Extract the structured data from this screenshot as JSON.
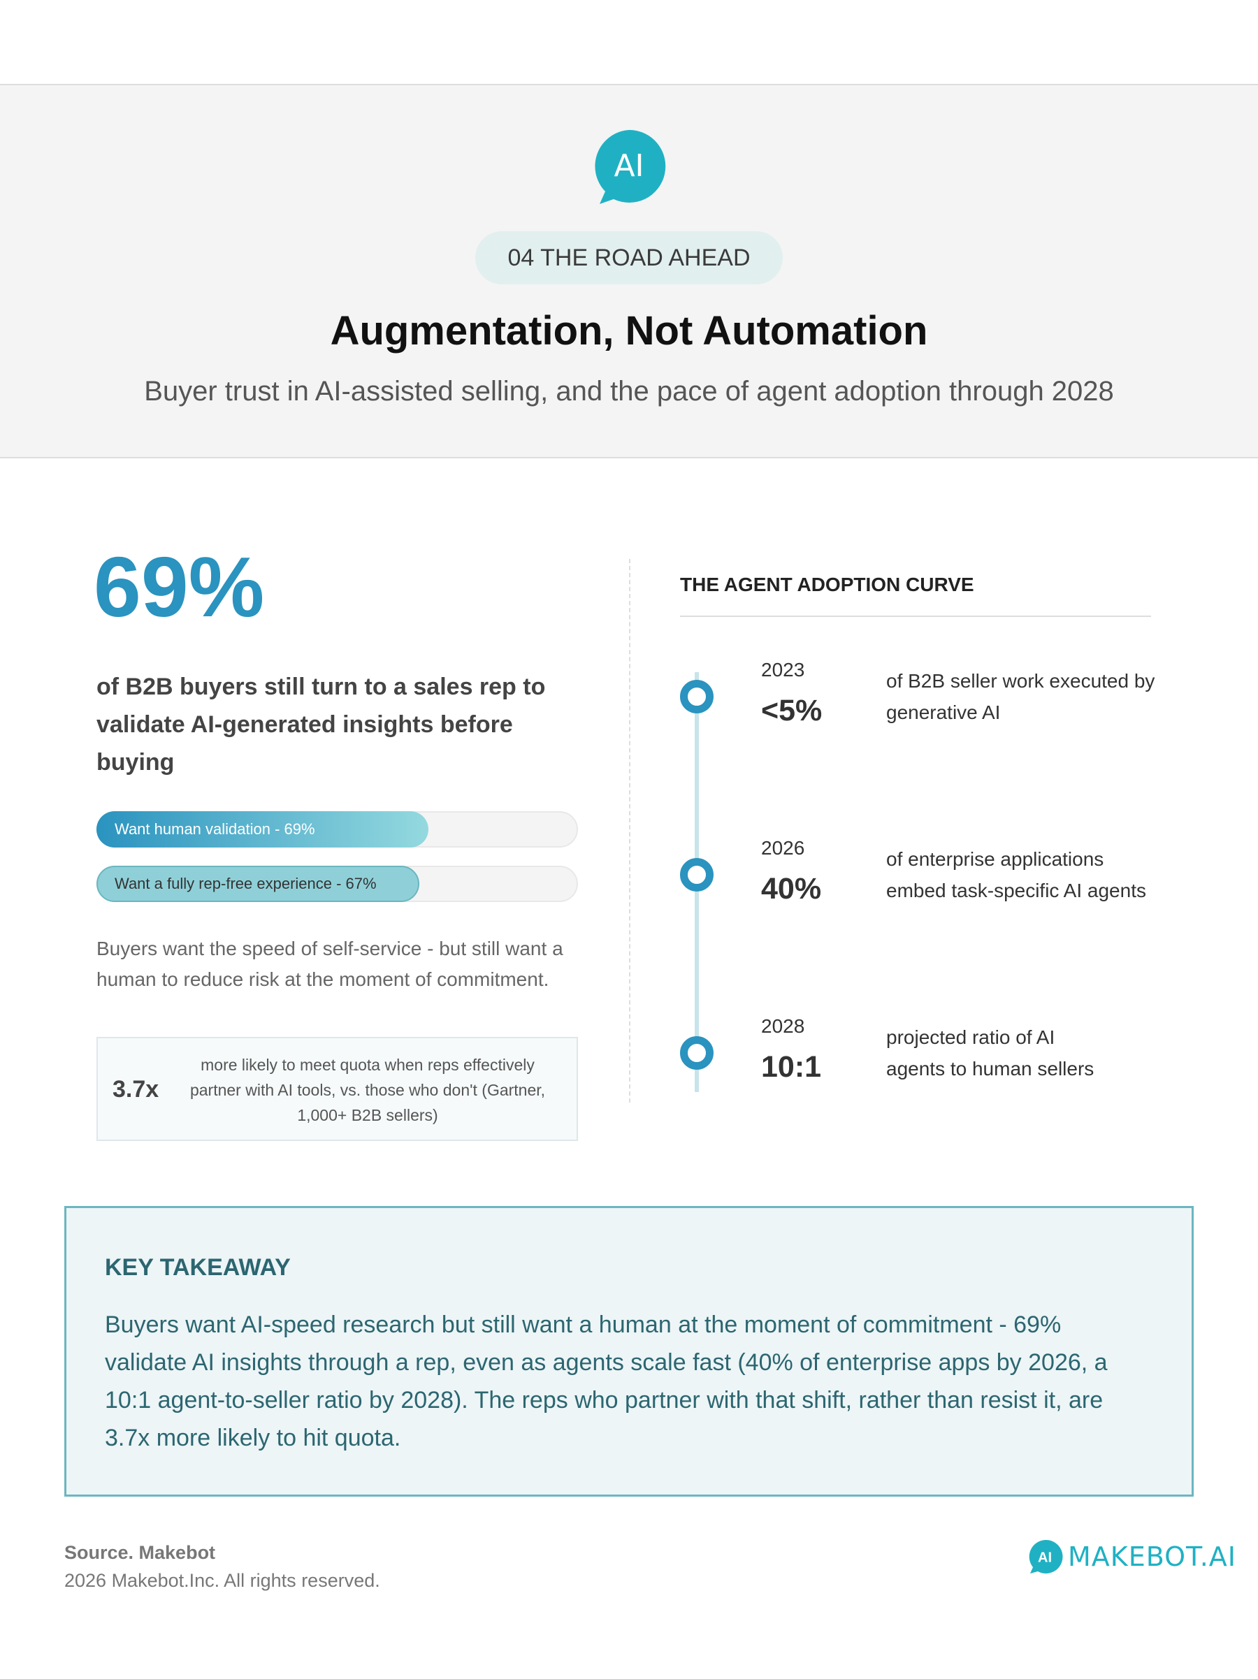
{
  "header": {
    "icon_text": "AI",
    "badge": "04 THE ROAD AHEAD",
    "title": "Augmentation, Not Automation",
    "subtitle": "Buyer trust in AI-assisted selling, and the pace of agent adoption through 2028"
  },
  "left": {
    "headline": "69%",
    "description": "of B2B buyers still turn to a sales rep to validate AI-generated insights before buying",
    "bars": {
      "xlim": [
        0,
        100
      ],
      "items": [
        {
          "label": "Want human validation - 69%",
          "value": 69,
          "color": "#2a93bf"
        },
        {
          "label": "Want a fully rep-free experience - 67%",
          "value": 67,
          "color": "#8fd0d8"
        }
      ]
    },
    "caption": "Buyers want the speed of self-service - but still want a human to reduce risk at the moment of commitment.",
    "stat": {
      "value": "3.7x",
      "text": "more likely to meet quota when reps effectively partner with AI tools, vs. those who don't (Gartner, 1,000+ B2B sellers)"
    }
  },
  "timeline": {
    "title": "THE AGENT ADOPTION CURVE",
    "items": [
      {
        "year": "2023",
        "value": "<5%",
        "text": "of B2B seller work executed by generative AI"
      },
      {
        "year": "2026",
        "value": "40%",
        "text": "of enterprise applications embed task-specific AI agents"
      },
      {
        "year": "2028",
        "value": "10:1",
        "text": "projected ratio of AI agents to human sellers"
      }
    ]
  },
  "takeaway": {
    "title": "KEY TAKEAWAY",
    "text": "Buyers want AI-speed research but still want a human at the moment of commitment - 69% validate AI insights through a rep, even as agents scale fast (40% of enterprise apps by 2026, a 10:1 agent-to-seller ratio by 2028). The reps who partner with that shift, rather than resist it, are 3.7x more likely to hit quota."
  },
  "footer": {
    "source": "Source. Makebot",
    "copyright": "2026 Makebot.Inc. All rights reserved.",
    "logo_icon": "AI",
    "logo": "MAKEBOT.AI"
  }
}
